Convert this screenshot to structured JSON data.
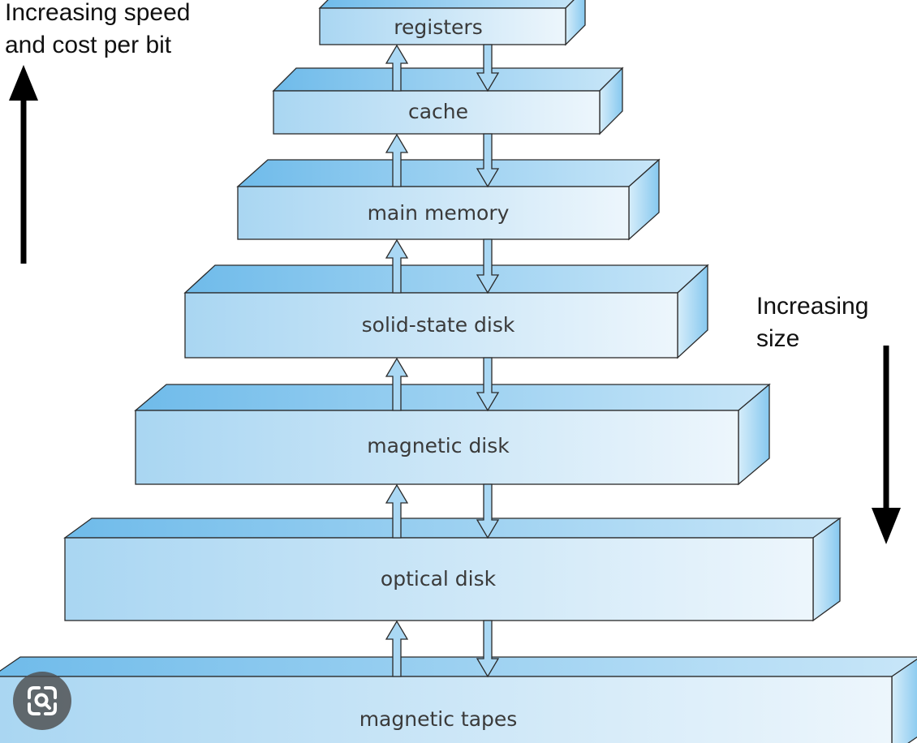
{
  "annotations": {
    "speed_line1": "Increasing speed",
    "speed_line2": "and cost per bit",
    "size_line1": "Increasing",
    "size_line2": "size"
  },
  "hierarchy": {
    "tiers": [
      {
        "label": "registers"
      },
      {
        "label": "cache"
      },
      {
        "label": "main memory"
      },
      {
        "label": "solid-state disk"
      },
      {
        "label": "magnetic disk"
      },
      {
        "label": "optical disk"
      },
      {
        "label": "magnetic tapes"
      }
    ]
  },
  "colors": {
    "tier_front_light": "#edf6fc",
    "tier_front_dark": "#a9d6f2",
    "tier_top": "#7ec4ee",
    "tier_side": "#9ed3f2",
    "arrow_fill": "#aad8f4",
    "outline": "#2a2a2a"
  },
  "icons": {
    "up_arrow": "up-arrow-icon",
    "down_arrow": "down-arrow-icon",
    "lens": "visual-search-icon"
  }
}
